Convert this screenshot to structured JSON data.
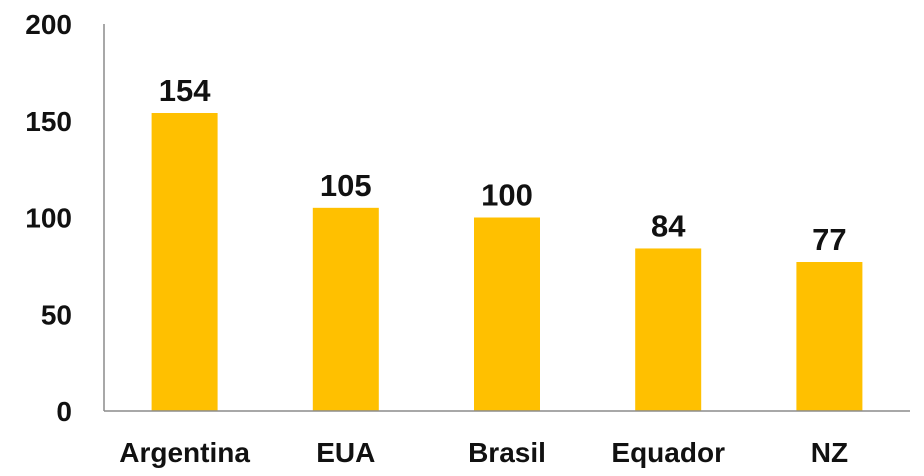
{
  "chart_data": {
    "type": "bar",
    "title": "",
    "xlabel": "",
    "ylabel": "",
    "categories": [
      "Argentina",
      "EUA",
      "Brasil",
      "Equador",
      "NZ"
    ],
    "values": [
      154,
      105,
      100,
      84,
      77
    ],
    "data_labels": [
      "154",
      "105",
      "100",
      "84",
      "77"
    ],
    "ylim": [
      0,
      200
    ],
    "yticks": [
      0,
      50,
      100,
      150,
      200
    ],
    "ytick_labels": [
      "0",
      "50",
      "100",
      "150",
      "200"
    ],
    "grid": false,
    "legend": "none",
    "bar_color": "#FFC000",
    "text_color": "#111111",
    "axis_color": "#8c8c8c"
  }
}
